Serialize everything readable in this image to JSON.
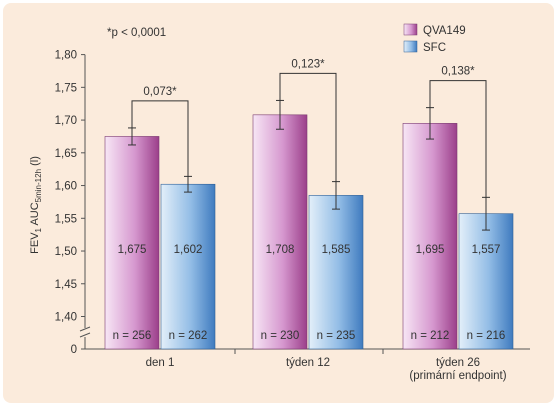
{
  "chart_data": {
    "type": "bar",
    "title": "",
    "ylabel": "FEV1 AUC5min-12h (l)",
    "ylabel_parts": {
      "main": "FEV",
      "sub1": "1",
      "mid": " AUC",
      "sub2": "5min-12h",
      "unit": " (l)"
    },
    "note": "*p < 0,0001",
    "ylim": [
      1.4,
      1.8
    ],
    "y_ticks": [
      "1,80",
      "1,75",
      "1,70",
      "1,65",
      "1,60",
      "1,55",
      "1,50",
      "1,45",
      "1,40",
      "0"
    ],
    "categories": [
      "den 1",
      "týden 12",
      "týden 26"
    ],
    "category_sublabels": [
      "",
      "",
      "(primární endpoint)"
    ],
    "series": [
      {
        "name": "QVA149",
        "values": [
          1.675,
          1.708,
          1.695
        ],
        "labels": [
          "1,675",
          "1,708",
          "1,695"
        ],
        "errors": [
          0.013,
          0.022,
          0.024
        ],
        "n_labels": [
          "n = 256",
          "n = 230",
          "n = 212"
        ]
      },
      {
        "name": "SFC",
        "values": [
          1.602,
          1.585,
          1.557
        ],
        "labels": [
          "1,602",
          "1,585",
          "1,557"
        ],
        "errors": [
          0.012,
          0.021,
          0.025
        ],
        "n_labels": [
          "n = 262",
          "n = 235",
          "n = 216"
        ]
      }
    ],
    "differences": [
      "0,073*",
      "0,123*",
      "0,138*"
    ],
    "legend_position": "top-right",
    "grid": false,
    "axis_break": true
  },
  "colors": {
    "background": "#fbebdc",
    "qva_light": "#f5dff3",
    "qva_dark": "#9b3f8a",
    "sfc_light": "#dcebf9",
    "sfc_dark": "#3f7bbf",
    "axis": "#555555",
    "text": "#333333"
  }
}
